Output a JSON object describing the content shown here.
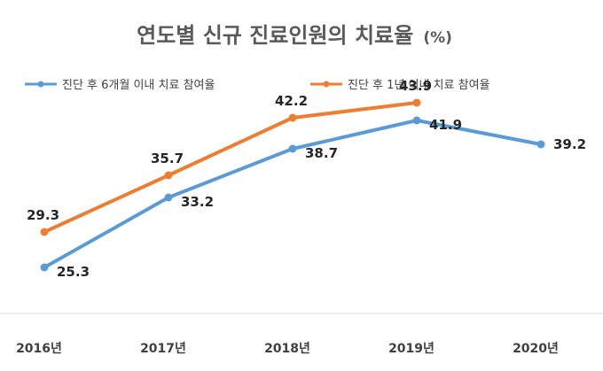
{
  "chart_data": {
    "type": "line",
    "title": "연도별 신규 진료인원의 치료율",
    "title_unit": "(%)",
    "categories": [
      "2016년",
      "2017년",
      "2018년",
      "2019년",
      "2020년"
    ],
    "series": [
      {
        "name": "진단 후 6개월 이내 치료 참여율",
        "color": "#5B9BD5",
        "values": [
          25.3,
          33.2,
          38.7,
          41.9,
          39.2
        ]
      },
      {
        "name": "진단 후 1년 이내 치료 참여율",
        "color": "#ED7D31",
        "values": [
          29.3,
          35.7,
          42.2,
          43.9,
          null
        ]
      }
    ],
    "xlabel": "",
    "ylabel": "",
    "ylim": [
      20,
      45
    ],
    "legend_position": "top",
    "grid": false
  }
}
